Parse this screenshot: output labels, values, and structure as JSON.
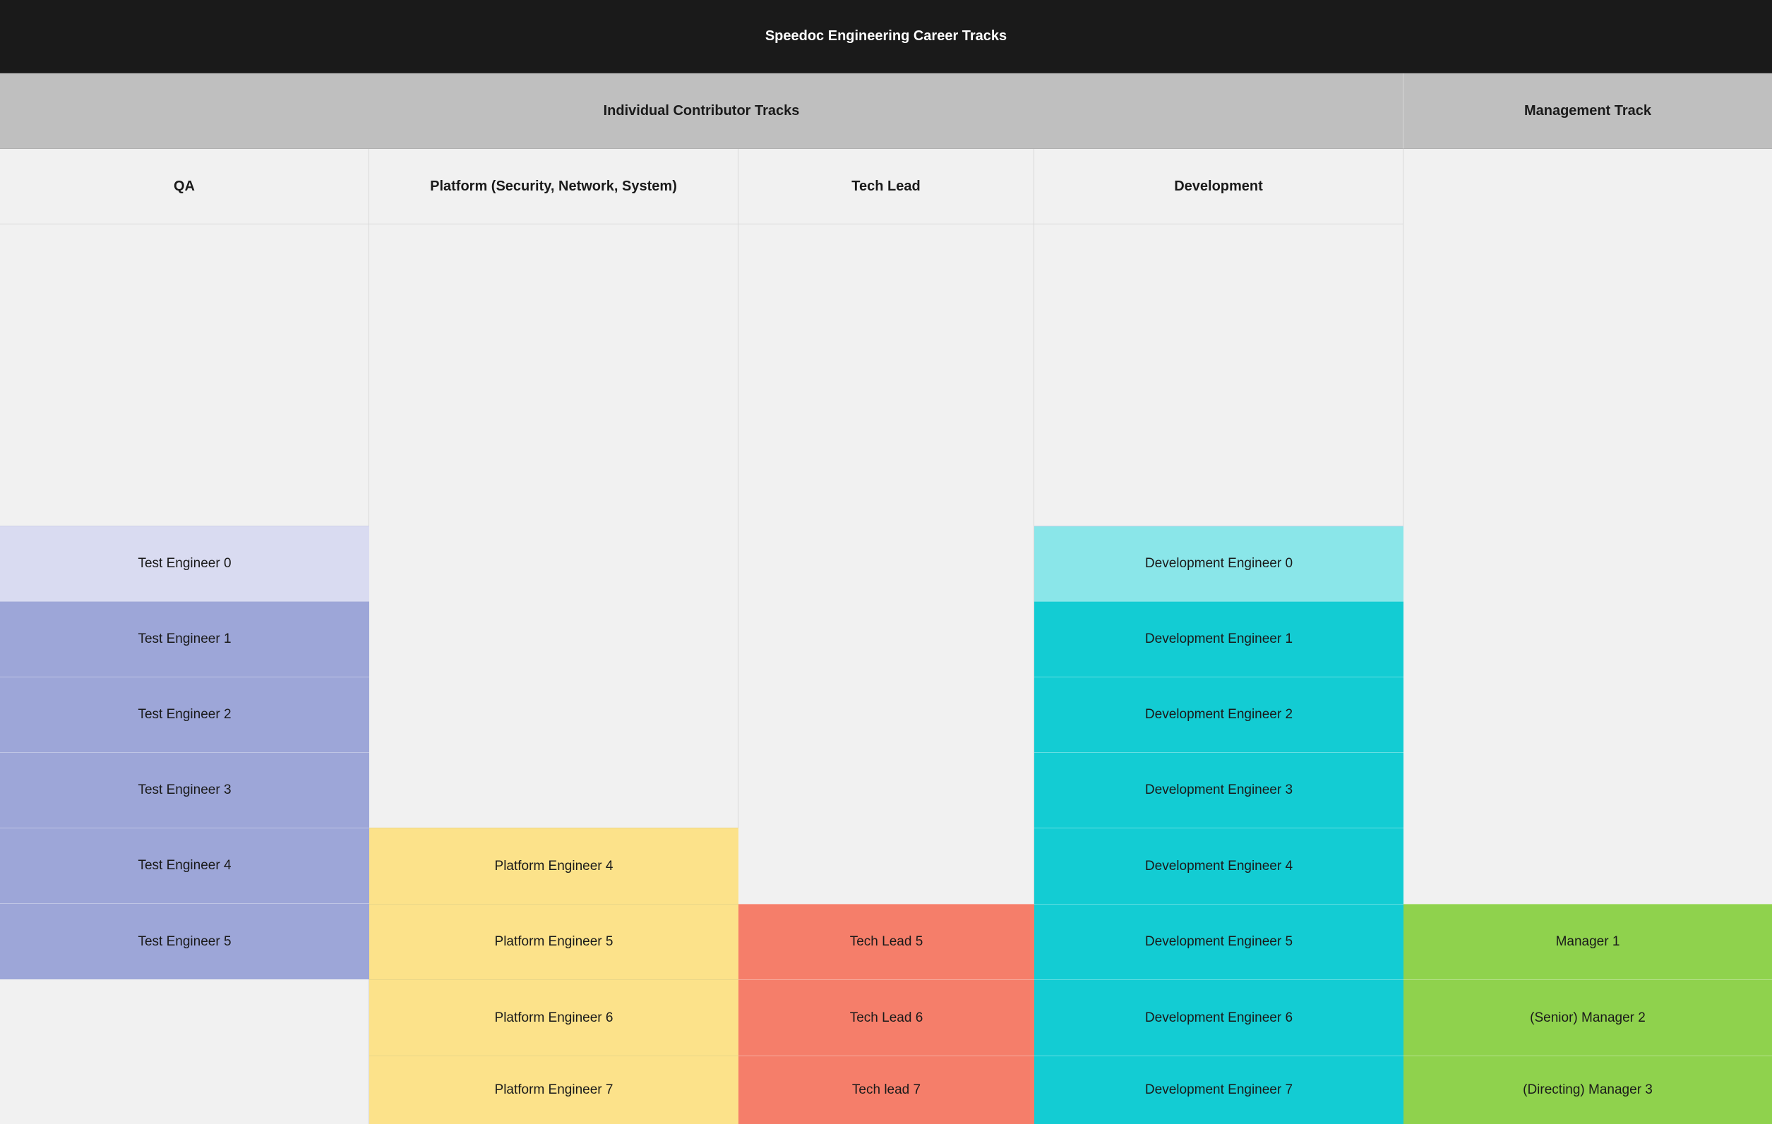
{
  "title": "Speedoc Engineering Career Tracks",
  "groups": {
    "individual_contributor": "Individual Contributor Tracks",
    "management": "Management Track"
  },
  "tracks": {
    "qa": {
      "label": "QA",
      "color": "#9da6d8",
      "levels": [
        "Test Engineer 0",
        "Test Engineer 1",
        "Test Engineer 2",
        "Test Engineer 3",
        "Test Engineer 4",
        "Test Engineer 5"
      ]
    },
    "platform": {
      "label": "Platform (Security, Network, System)",
      "color": "#fce28a",
      "levels": [
        "Platform Engineer 4",
        "Platform Engineer 5",
        "Platform Engineer 6",
        "Platform Engineer 7"
      ]
    },
    "tech_lead": {
      "label": "Tech Lead",
      "color": "#f57e6a",
      "levels": [
        "Tech Lead 5",
        "Tech Lead 6",
        "Tech lead 7"
      ]
    },
    "development": {
      "label": "Development",
      "color": "#13ccd3",
      "levels": [
        "Development Engineer 0",
        "Development Engineer 1",
        "Development Engineer 2",
        "Development Engineer 3",
        "Development Engineer 4",
        "Development Engineer 5",
        "Development Engineer 6",
        "Development Engineer 7"
      ]
    },
    "management": {
      "color": "#8fd24d",
      "levels": [
        "Manager 1",
        "(Senior) Manager 2",
        "(Directing) Manager 3"
      ]
    }
  }
}
